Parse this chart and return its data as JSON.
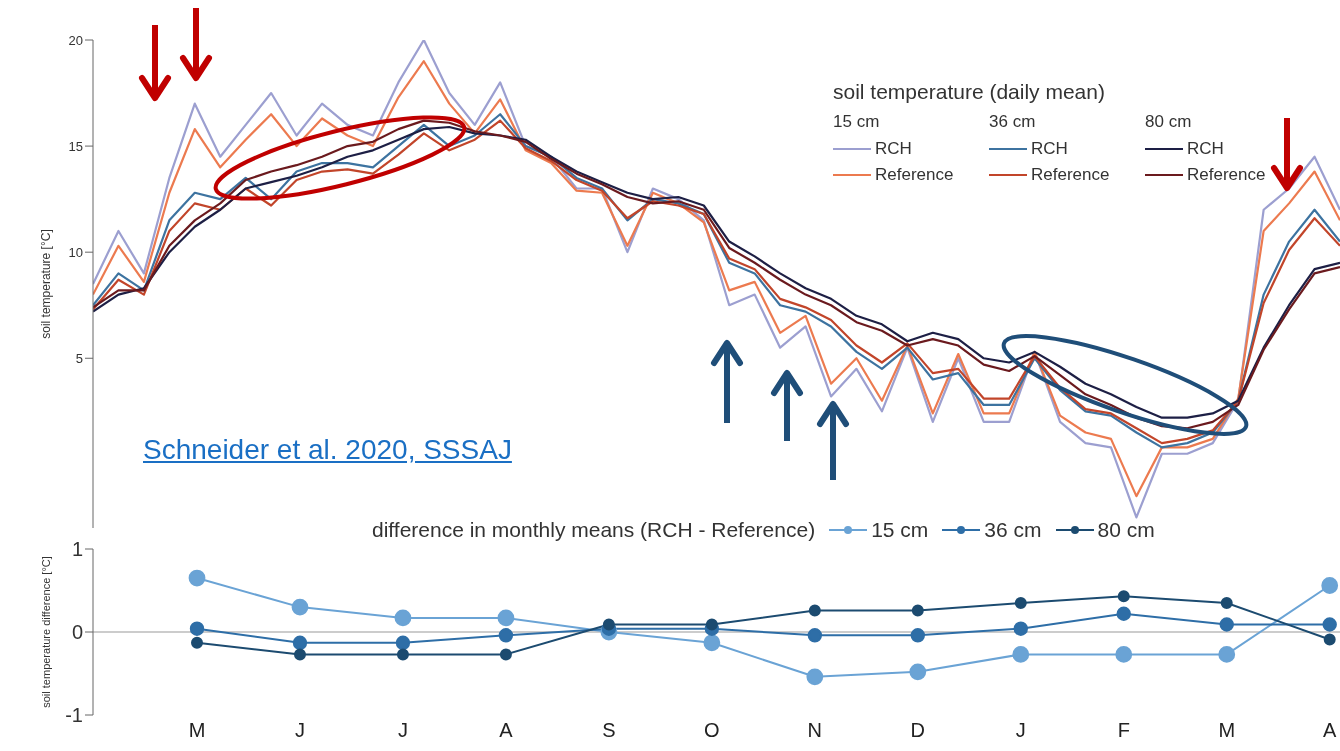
{
  "chart_data": [
    {
      "type": "line",
      "ylabel": "soil temperature [°C]",
      "legend_title": "soil temperature (daily mean)",
      "annotations": [
        "Schneider et al. 2020, SSSAJ",
        "15 cm",
        "36 cm",
        "80 cm"
      ],
      "categories": [
        null,
        null,
        null,
        null,
        null,
        null,
        null,
        null,
        null,
        null,
        null,
        null,
        null,
        null,
        null,
        null,
        null,
        null,
        null,
        null,
        null,
        null,
        null,
        null,
        null,
        null,
        null,
        null,
        null,
        null,
        null,
        null,
        null,
        null,
        null,
        null,
        null,
        null,
        null,
        null,
        null,
        null,
        null,
        null,
        null,
        null,
        null,
        null,
        null,
        null
      ],
      "ylim": [
        -3,
        20
      ],
      "yticks": [
        5,
        10,
        15,
        20
      ],
      "tick_labels": "y",
      "legend": "top right",
      "marker": "none",
      "line_style": "solid",
      "grid": false,
      "series": [
        {
          "name": "RCH",
          "color": "#9c9fd0",
          "values": [
            8.5,
            11,
            9,
            13.5,
            17,
            14.5,
            16,
            17.5,
            15.5,
            17,
            16,
            15.5,
            18,
            20,
            17.5,
            16,
            18,
            15,
            14.5,
            13,
            13,
            10,
            13,
            12.5,
            11.5,
            7.5,
            8,
            5.5,
            6.5,
            3.2,
            4.5,
            2.5,
            5.5,
            2,
            5,
            2,
            2,
            5.3,
            2,
            1,
            0.8,
            -2.5,
            0.5,
            0.5,
            1,
            3,
            12,
            13,
            14.5,
            12
          ]
        },
        {
          "name": "Reference",
          "color": "#ec7a4f",
          "values": [
            8,
            10.3,
            8.6,
            12.8,
            15.8,
            14,
            15.3,
            16.5,
            15,
            16.3,
            15.5,
            15,
            17.3,
            19,
            17,
            15.6,
            17.2,
            14.8,
            14.2,
            12.9,
            12.8,
            10.3,
            12.8,
            12.3,
            11.4,
            8.2,
            8.6,
            6.2,
            7,
            3.8,
            5,
            3,
            5.6,
            2.4,
            5.2,
            2.4,
            2.4,
            5.3,
            2.3,
            1.5,
            1.2,
            -1.5,
            0.8,
            0.8,
            1.2,
            3.1,
            11,
            12.3,
            13.8,
            11.5
          ]
        },
        {
          "name": "RCH",
          "color": "#3d73a0",
          "values": [
            7.5,
            9,
            8.2,
            11.5,
            12.8,
            12.5,
            13.5,
            12.5,
            13.8,
            14.2,
            14.2,
            14,
            15,
            16,
            15,
            15.5,
            16.5,
            15,
            14.5,
            13.5,
            13,
            11.5,
            12.5,
            12.3,
            11.8,
            9.5,
            9,
            7.5,
            7.2,
            6.5,
            5.3,
            4.5,
            5.5,
            4,
            4.3,
            2.8,
            2.8,
            5,
            3.5,
            2.5,
            2.3,
            1.5,
            0.8,
            1,
            1.5,
            3,
            8,
            10.5,
            12,
            10.5
          ]
        },
        {
          "name": "Reference",
          "color": "#c2452a",
          "values": [
            7.3,
            8.7,
            8,
            11,
            12.3,
            12,
            13,
            12.2,
            13.4,
            13.8,
            13.9,
            13.7,
            14.6,
            15.6,
            14.8,
            15.3,
            16.2,
            14.9,
            14.3,
            13.4,
            12.9,
            11.6,
            12.4,
            12.2,
            11.8,
            9.7,
            9.2,
            7.8,
            7.4,
            6.8,
            5.6,
            4.8,
            5.7,
            4.3,
            4.5,
            3.1,
            3.1,
            5.1,
            3.6,
            2.6,
            2.4,
            1.7,
            1,
            1.2,
            1.6,
            3,
            7.6,
            10.1,
            11.6,
            10.3
          ]
        },
        {
          "name": "RCH",
          "color": "#1d1f45",
          "values": [
            7.2,
            8,
            8.3,
            10,
            11.2,
            12,
            13,
            13.3,
            13.6,
            14,
            14.5,
            14.8,
            15.3,
            15.8,
            15.9,
            15.6,
            15.5,
            15.3,
            14.5,
            13.8,
            13.3,
            12.8,
            12.5,
            12.6,
            12.2,
            10.5,
            9.8,
            9,
            8.3,
            7.8,
            7,
            6.6,
            5.8,
            6.2,
            5.9,
            5,
            4.8,
            5.3,
            4.6,
            3.8,
            3.3,
            2.7,
            2.2,
            2.2,
            2.4,
            3,
            5.5,
            7.5,
            9.2,
            9.5
          ]
        },
        {
          "name": "Reference",
          "color": "#6b1a1e",
          "values": [
            7.4,
            8.2,
            8.2,
            10.3,
            11.5,
            12.3,
            13.4,
            13.8,
            14.1,
            14.5,
            15,
            15.2,
            15.8,
            16.2,
            16.1,
            15.7,
            15.5,
            15.2,
            14.4,
            13.7,
            13.2,
            12.6,
            12.3,
            12.4,
            12,
            10.2,
            9.5,
            8.7,
            8,
            7.5,
            6.7,
            6.3,
            5.6,
            5.9,
            5.6,
            4.7,
            4.4,
            5.1,
            4.2,
            3.3,
            2.8,
            2.2,
            1.8,
            1.7,
            2,
            2.8,
            5.4,
            7.3,
            9,
            9.3
          ]
        }
      ]
    },
    {
      "type": "line",
      "ylabel": "soil temperature difference [°C]",
      "legend_title": "difference in monthly means (RCH - Reference)",
      "categories": [
        "M",
        "J",
        "J",
        "A",
        "S",
        "O",
        "N",
        "D",
        "J",
        "F",
        "M",
        "A"
      ],
      "ylim": [
        -1,
        1
      ],
      "yticks": [
        -1,
        0,
        1
      ],
      "legend": "top",
      "marker": "circle",
      "line_style": "solid",
      "grid": false,
      "ref_lines": [
        {
          "axis": "y",
          "value": 0,
          "color": "#999999"
        }
      ],
      "series": [
        {
          "name": "15 cm",
          "color": "#6aa3d5",
          "values": [
            0.65,
            0.3,
            0.17,
            0.17,
            0,
            -0.13,
            -0.54,
            -0.48,
            -0.27,
            -0.27,
            -0.27,
            0.56
          ]
        },
        {
          "name": "36 cm",
          "color": "#2e6ea7",
          "values": [
            0.04,
            -0.13,
            -0.13,
            -0.04,
            0.04,
            0.04,
            -0.04,
            -0.04,
            0.04,
            0.22,
            0.09,
            0.09
          ]
        },
        {
          "name": "80 cm",
          "color": "#1c4b70",
          "values": [
            -0.13,
            -0.27,
            -0.27,
            -0.27,
            0.09,
            0.09,
            0.26,
            0.26,
            0.35,
            0.43,
            0.35,
            -0.09
          ]
        }
      ]
    }
  ]
}
